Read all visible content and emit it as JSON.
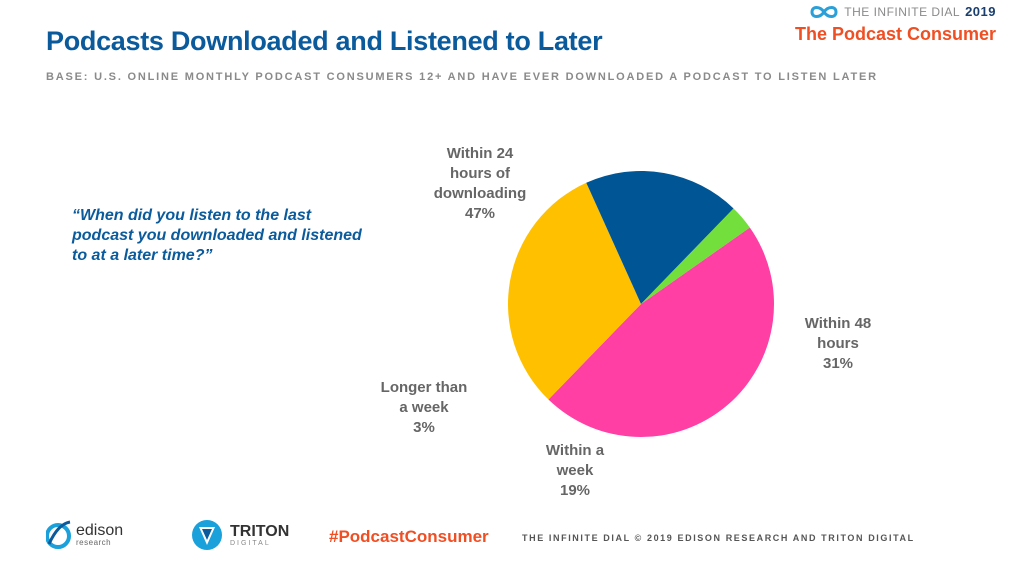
{
  "header": {
    "title": "Podcasts Downloaded and Listened to Later",
    "base": "BASE: U.S. ONLINE MONTHLY PODCAST CONSUMERS 12+ AND HAVE EVER DOWNLOADED A PODCAST TO LISTEN LATER"
  },
  "brand": {
    "line1": "THE INFINITE DIAL",
    "year": "2019",
    "subtitle": "The Podcast Consumer",
    "icon": "infinity-icon"
  },
  "question": "“When did you listen to the last podcast you downloaded and listened to at a later time?”",
  "chart_data": {
    "type": "pie",
    "slices": [
      {
        "label_lines": [
          "Within 24",
          "hours of",
          "downloading"
        ],
        "value": 47,
        "value_label": "47%",
        "color": "#ff3fa4"
      },
      {
        "label_lines": [
          "Within 48",
          "hours"
        ],
        "value": 31,
        "value_label": "31%",
        "color": "#ffc000"
      },
      {
        "label_lines": [
          "Within a",
          "week"
        ],
        "value": 19,
        "value_label": "19%",
        "color": "#005595"
      },
      {
        "label_lines": [
          "Longer than",
          "a week"
        ],
        "value": 3,
        "value_label": "3%",
        "color": "#72df3c"
      }
    ]
  },
  "footer": {
    "hashtag": "#PodcastConsumer",
    "copyright": "THE INFINITE DIAL   © 2019 EDISON RESEARCH AND TRITON DIGITAL",
    "edison_name": "edison",
    "edison_sub": "research",
    "triton_name": "TRITON",
    "triton_sub": "DIGITAL"
  }
}
